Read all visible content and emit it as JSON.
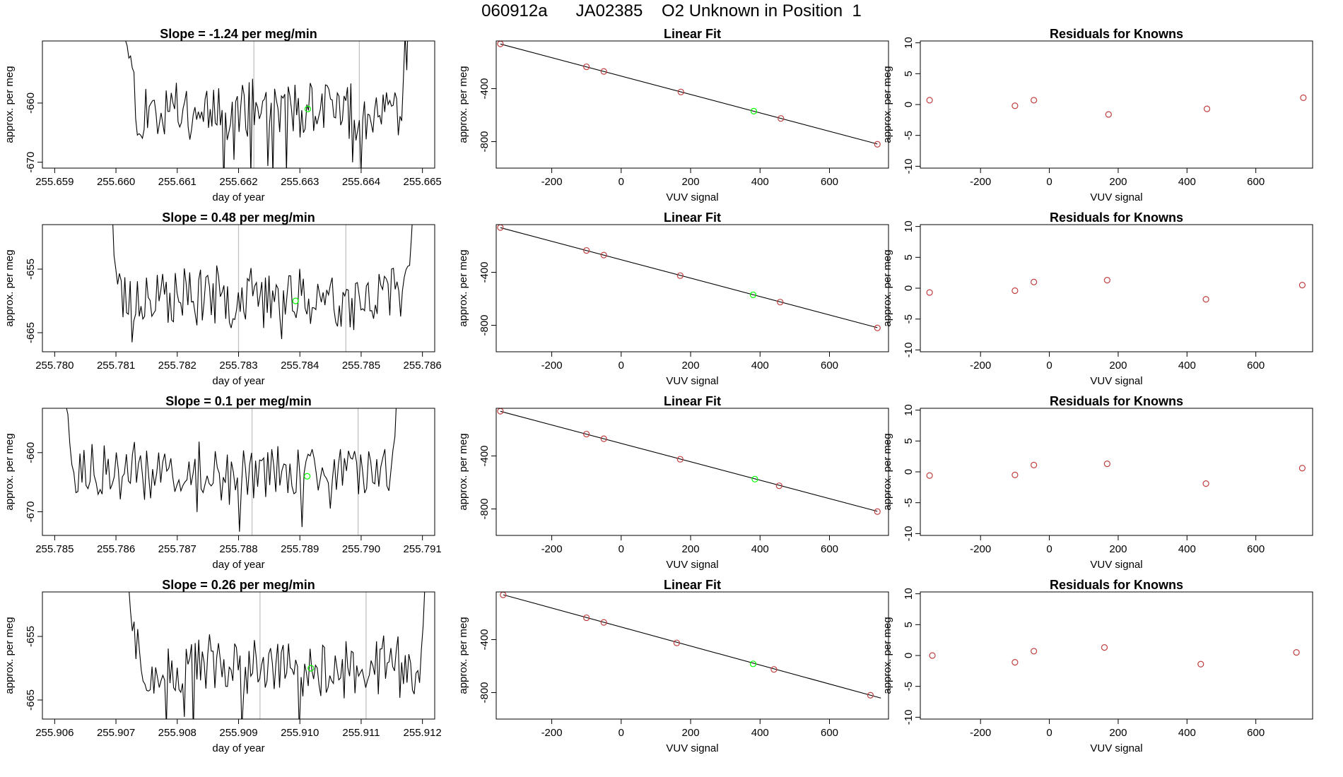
{
  "page_title": "060912a      JA02385    O2 Unknown in Position  1",
  "colors": {
    "trace": "#000000",
    "marker": "#00ff00",
    "known": "#c04040",
    "vline": "#bebebe",
    "axis": "#000000"
  },
  "chart_data": [
    {
      "type": "line",
      "title": "Slope =  -1.24  per meg/min",
      "xlabel": "day of year",
      "ylabel": "approx. per meg",
      "xlim": [
        255.6588,
        255.6652
      ],
      "ylim": [
        -671,
        -649.5
      ],
      "xticks": [
        "255.659",
        "255.660",
        "255.661",
        "255.662",
        "255.663",
        "255.664",
        "255.665"
      ],
      "yticks": [
        -660,
        -670
      ],
      "vlines": [
        255.66225,
        255.66397
      ],
      "marker": {
        "x": 255.66313,
        "y": -661
      },
      "trace_start": 255.6601,
      "trace_end": 255.6648,
      "trace_level": -661,
      "trace_seed": 11
    },
    {
      "type": "scatter",
      "title": "Linear Fit",
      "xlabel": "VUV signal",
      "ylabel": "approx. per meg",
      "xlim": [
        -360,
        770
      ],
      "ylim": [
        -1000,
        -40
      ],
      "xticks": [
        -200,
        0,
        200,
        400,
        600
      ],
      "yticks": [
        -400,
        -800
      ],
      "points": [
        [
          -348,
          -62
        ],
        [
          -100,
          -235
        ],
        [
          -50,
          -270
        ],
        [
          172,
          -425
        ],
        [
          460,
          -625
        ],
        [
          738,
          -820
        ]
      ],
      "marker": {
        "x": 382,
        "y": -570
      },
      "fit": {
        "slope": -0.695,
        "intercept": -305,
        "x0": -348,
        "x1": 738
      }
    },
    {
      "type": "scatter",
      "title": "Residuals for Knowns",
      "xlabel": "VUV signal",
      "ylabel": "approx. per meg",
      "xlim": [
        -375,
        765
      ],
      "ylim": [
        -10.3,
        10.3
      ],
      "xticks": [
        -200,
        0,
        200,
        400,
        600
      ],
      "yticks": [
        10,
        5,
        0,
        -5,
        -10
      ],
      "points": [
        [
          -348,
          0.7
        ],
        [
          -100,
          -0.2
        ],
        [
          -45,
          0.7
        ],
        [
          172,
          -1.6
        ],
        [
          458,
          -0.7
        ],
        [
          738,
          1.1
        ]
      ]
    },
    {
      "type": "line",
      "title": "Slope =  0.48  per meg/min",
      "xlabel": "day of year",
      "ylabel": "approx. per meg",
      "xlim": [
        255.7798,
        255.7862
      ],
      "ylim": [
        -668,
        -648
      ],
      "xticks": [
        "255.780",
        "255.781",
        "255.782",
        "255.783",
        "255.784",
        "255.785",
        "255.786"
      ],
      "yticks": [
        -655,
        -665
      ],
      "vlines": [
        255.783,
        255.78475
      ],
      "marker": {
        "x": 255.78393,
        "y": -660
      },
      "trace_start": 255.78085,
      "trace_end": 255.78585,
      "trace_level": -659.5,
      "trace_seed": 23
    },
    {
      "type": "scatter",
      "title": "Linear Fit",
      "xlabel": "VUV signal",
      "ylabel": "approx. per meg",
      "xlim": [
        -360,
        770
      ],
      "ylim": [
        -1000,
        -40
      ],
      "xticks": [
        -200,
        0,
        200,
        400,
        600
      ],
      "yticks": [
        -400,
        -800
      ],
      "points": [
        [
          -348,
          -62
        ],
        [
          -100,
          -235
        ],
        [
          -50,
          -270
        ],
        [
          170,
          -425
        ],
        [
          458,
          -625
        ],
        [
          738,
          -820
        ]
      ],
      "marker": {
        "x": 380,
        "y": -570
      },
      "fit": {
        "slope": -0.695,
        "intercept": -305,
        "x0": -348,
        "x1": 738
      }
    },
    {
      "type": "scatter",
      "title": "Residuals for Knowns",
      "xlabel": "VUV signal",
      "ylabel": "approx. per meg",
      "xlim": [
        -375,
        765
      ],
      "ylim": [
        -10.3,
        10.3
      ],
      "xticks": [
        -200,
        0,
        200,
        400,
        600
      ],
      "yticks": [
        10,
        5,
        0,
        -5,
        -10
      ],
      "points": [
        [
          -348,
          -0.7
        ],
        [
          -100,
          -0.4
        ],
        [
          -45,
          1.0
        ],
        [
          168,
          1.3
        ],
        [
          455,
          -1.8
        ],
        [
          735,
          0.5
        ]
      ]
    },
    {
      "type": "line",
      "title": "Slope =  0.1  per meg/min",
      "xlabel": "day of year",
      "ylabel": "approx. per meg",
      "xlim": [
        255.7848,
        255.7912
      ],
      "ylim": [
        -674,
        -652.5
      ],
      "xticks": [
        "255.785",
        "255.786",
        "255.787",
        "255.788",
        "255.789",
        "255.790",
        "255.791"
      ],
      "yticks": [
        -660,
        -670
      ],
      "vlines": [
        255.78822,
        255.78995
      ],
      "marker": {
        "x": 255.78912,
        "y": -664
      },
      "trace_start": 255.78505,
      "trace_end": 255.79065,
      "trace_level": -663.5,
      "trace_seed": 37
    },
    {
      "type": "scatter",
      "title": "Linear Fit",
      "xlabel": "VUV signal",
      "ylabel": "approx. per meg",
      "xlim": [
        -360,
        770
      ],
      "ylim": [
        -1000,
        -40
      ],
      "xticks": [
        -200,
        0,
        200,
        400,
        600
      ],
      "yticks": [
        -400,
        -800
      ],
      "points": [
        [
          -348,
          -62
        ],
        [
          -100,
          -235
        ],
        [
          -50,
          -270
        ],
        [
          170,
          -425
        ],
        [
          455,
          -625
        ],
        [
          738,
          -820
        ]
      ],
      "marker": {
        "x": 385,
        "y": -575
      },
      "fit": {
        "slope": -0.695,
        "intercept": -305,
        "x0": -348,
        "x1": 738
      }
    },
    {
      "type": "scatter",
      "title": "Residuals for Knowns",
      "xlabel": "VUV signal",
      "ylabel": "approx. per meg",
      "xlim": [
        -375,
        765
      ],
      "ylim": [
        -10.3,
        10.3
      ],
      "xticks": [
        -200,
        0,
        200,
        400,
        600
      ],
      "yticks": [
        10,
        5,
        0,
        -5,
        -10
      ],
      "points": [
        [
          -348,
          -0.6
        ],
        [
          -100,
          -0.5
        ],
        [
          -45,
          1.1
        ],
        [
          168,
          1.3
        ],
        [
          455,
          -1.9
        ],
        [
          735,
          0.6
        ]
      ]
    },
    {
      "type": "line",
      "title": "Slope =  0.26  per meg/min",
      "xlabel": "day of year",
      "ylabel": "approx. per meg",
      "xlim": [
        255.9058,
        255.9122
      ],
      "ylim": [
        -668,
        -648
      ],
      "xticks": [
        "255.906",
        "255.907",
        "255.908",
        "255.909",
        "255.910",
        "255.911",
        "255.912"
      ],
      "yticks": [
        -655,
        -665
      ],
      "vlines": [
        255.90935,
        255.91108
      ],
      "marker": {
        "x": 255.91018,
        "y": -660
      },
      "trace_start": 255.90712,
      "trace_end": 255.9121,
      "trace_level": -659.8,
      "trace_seed": 51
    },
    {
      "type": "scatter",
      "title": "Linear Fit",
      "xlabel": "VUV signal",
      "ylabel": "approx. per meg",
      "xlim": [
        -360,
        770
      ],
      "ylim": [
        -1000,
        -40
      ],
      "xticks": [
        -200,
        0,
        200,
        400,
        600
      ],
      "yticks": [
        -400,
        -800
      ],
      "points": [
        [
          -340,
          -62
        ],
        [
          -100,
          -235
        ],
        [
          -50,
          -270
        ],
        [
          160,
          -425
        ],
        [
          440,
          -625
        ],
        [
          718,
          -820
        ]
      ],
      "marker": {
        "x": 380,
        "y": -583
      },
      "fit": {
        "slope": -0.717,
        "intercept": -305,
        "x0": -340,
        "x1": 748
      }
    },
    {
      "type": "scatter",
      "title": "Residuals for Knowns",
      "xlabel": "VUV signal",
      "ylabel": "approx. per meg",
      "xlim": [
        -375,
        765
      ],
      "ylim": [
        -10.3,
        10.3
      ],
      "xticks": [
        -200,
        0,
        200,
        400,
        600
      ],
      "yticks": [
        10,
        5,
        0,
        -5,
        -10
      ],
      "points": [
        [
          -340,
          0.0
        ],
        [
          -100,
          -1.1
        ],
        [
          -45,
          0.7
        ],
        [
          160,
          1.3
        ],
        [
          440,
          -1.4
        ],
        [
          718,
          0.5
        ]
      ]
    }
  ]
}
